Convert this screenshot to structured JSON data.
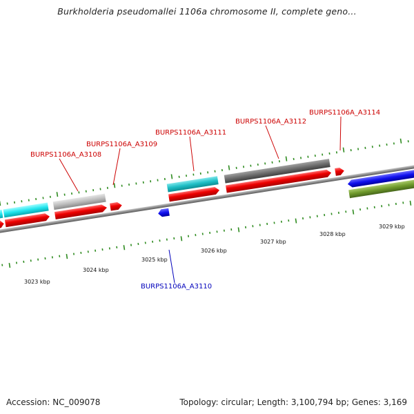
{
  "title": "Burkholderia pseudomallei 1106a chromosome II, complete geno...",
  "footer": {
    "accession": "Accession: NC_009078",
    "summary": "Topology: circular; Length: 3,100,794 bp; Genes: 3,169"
  },
  "colors": {
    "tick": "#2e8b1f",
    "backbone": "#8c8c8c",
    "label_red": "#cc0000",
    "label_blue": "#0000bb",
    "kbp_text": "#111111"
  },
  "kbp_ticks": [
    {
      "name": "kbp-label-3023",
      "label": "3023 kbp"
    },
    {
      "name": "kbp-label-3024",
      "label": "3024 kbp"
    },
    {
      "name": "kbp-label-3025",
      "label": "3025 kbp"
    },
    {
      "name": "kbp-label-3026",
      "label": "3026 kbp"
    },
    {
      "name": "kbp-label-3027",
      "label": "3027 kbp"
    },
    {
      "name": "kbp-label-3028",
      "label": "3028 kbp"
    },
    {
      "name": "kbp-label-3029",
      "label": "3029 kbp"
    }
  ],
  "gene_labels": [
    {
      "name": "gene-label-a3108",
      "text": "BURPS1106A_A3108",
      "strand": "forward"
    },
    {
      "name": "gene-label-a3109",
      "text": "BURPS1106A_A3109",
      "strand": "forward"
    },
    {
      "name": "gene-label-a3111",
      "text": "BURPS1106A_A3111",
      "strand": "forward"
    },
    {
      "name": "gene-label-a3112",
      "text": "BURPS1106A_A3112",
      "strand": "forward"
    },
    {
      "name": "gene-label-a3114",
      "text": "BURPS1106A_A3114",
      "strand": "forward"
    },
    {
      "name": "gene-label-a3110",
      "text": "BURPS1106A_A3110",
      "strand": "reverse"
    }
  ]
}
